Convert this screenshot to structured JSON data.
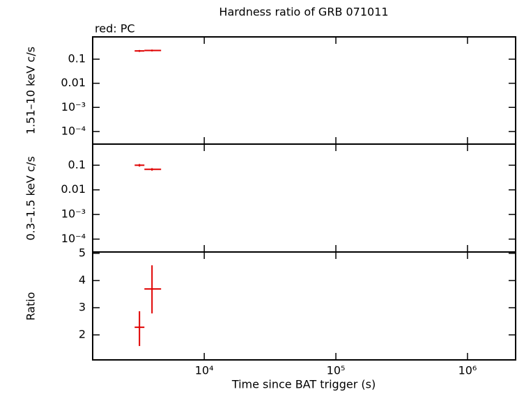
{
  "chart_data": [
    {
      "type": "scatter",
      "title": "Hardness ratio of GRB 071011",
      "annotation": "red: PC",
      "ylabel": "1.51–10 keV c/s",
      "log_x": true,
      "log_y": true,
      "xlim": [
        1420,
        2320000
      ],
      "xticks": [
        10000,
        100000,
        1000000
      ],
      "ylim": [
        3e-05,
        0.84
      ],
      "yticks": [
        0.1,
        0.01,
        {
          "value": 0.001,
          "label": "10⁻³"
        },
        {
          "value": 0.0001,
          "label": "10⁻⁴"
        }
      ],
      "series": [
        {
          "color": "#e00000",
          "x": [
            3220,
            4010
          ],
          "x_low": [
            2960,
            3510
          ],
          "x_high": [
            3510,
            4700
          ],
          "values": [
            0.22,
            0.23
          ],
          "y_low": [
            0.2,
            0.21
          ],
          "y_high": [
            0.24,
            0.25
          ]
        }
      ]
    },
    {
      "type": "scatter",
      "ylabel": "0.3–1.5 keV c/s",
      "log_x": true,
      "log_y": true,
      "xlim": [
        1420,
        2320000
      ],
      "xticks": [
        10000,
        100000,
        1000000
      ],
      "ylim": [
        3e-05,
        0.72
      ],
      "yticks": [
        0.1,
        0.01,
        {
          "value": 0.001,
          "label": "10⁻³"
        },
        {
          "value": 0.0001,
          "label": "10⁻⁴"
        }
      ],
      "series": [
        {
          "color": "#e00000",
          "x": [
            3220,
            4010
          ],
          "x_low": [
            2960,
            3510
          ],
          "x_high": [
            3510,
            4700
          ],
          "values": [
            0.1,
            0.068
          ],
          "y_low": [
            0.088,
            0.06
          ],
          "y_high": [
            0.112,
            0.076
          ]
        }
      ]
    },
    {
      "type": "scatter",
      "ylabel": "Ratio",
      "xlabel": "Time since BAT trigger (s)",
      "log_x": true,
      "log_y": false,
      "xlim": [
        1420,
        2320000
      ],
      "xticks": [
        {
          "value": 10000,
          "label": "10⁴"
        },
        {
          "value": 100000,
          "label": "10⁵"
        },
        {
          "value": 1000000,
          "label": "10⁶"
        }
      ],
      "ylim": [
        1.08,
        5.05
      ],
      "yticks": [
        2,
        3,
        4,
        5
      ],
      "series": [
        {
          "color": "#e00000",
          "x": [
            3220,
            4010
          ],
          "x_low": [
            2960,
            3510
          ],
          "x_high": [
            3510,
            4700
          ],
          "values": [
            2.28,
            3.69
          ],
          "y_low": [
            1.59,
            2.79
          ],
          "y_high": [
            2.87,
            4.56
          ]
        }
      ]
    }
  ]
}
